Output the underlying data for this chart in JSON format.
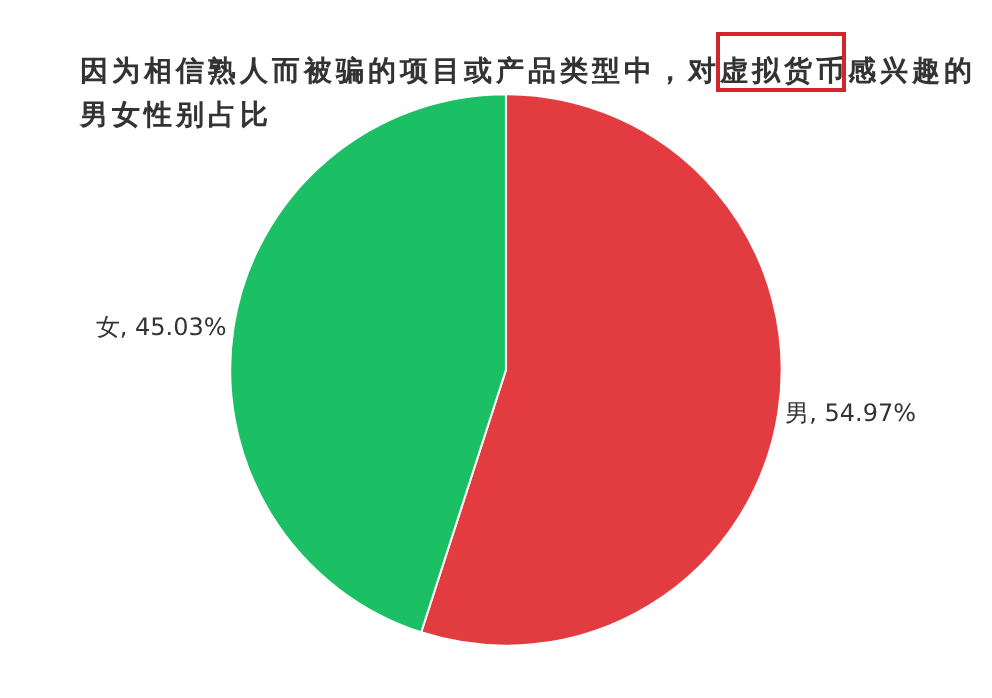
{
  "chart_data": {
    "type": "pie",
    "title": "因为相信熟人而被骗的项目或产品类型中，对虚拟货币感兴趣的男女性别占比",
    "categories": [
      "男",
      "女"
    ],
    "values": [
      54.97,
      45.03
    ],
    "colors": [
      "#e23b40",
      "#1cc064"
    ],
    "value_labels": [
      "54.97%",
      "45.03%"
    ],
    "legend": false
  }
}
